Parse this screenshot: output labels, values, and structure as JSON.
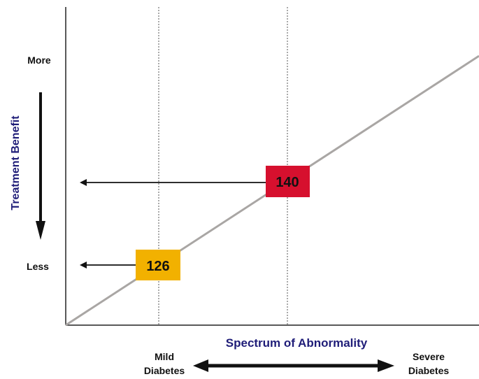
{
  "diagram": {
    "y_axis_title": "Treatment Benefit",
    "y_top_label": "More",
    "y_bottom_label": "Less",
    "x_axis_title": "Spectrum of Abnormality",
    "x_left_label_line1": "Mild",
    "x_left_label_line2": "Diabetes",
    "x_right_label_line1": "Severe",
    "x_right_label_line2": "Diabetes",
    "markers": [
      {
        "label": "126",
        "color": "#f2b100"
      },
      {
        "label": "140",
        "color": "#d6102e"
      }
    ],
    "colors": {
      "axis": "#222222",
      "trend_line": "#a9a6a4",
      "dotted_guides": "#555555",
      "title_navy": "#1f1d78",
      "arrows": "#111111"
    }
  }
}
